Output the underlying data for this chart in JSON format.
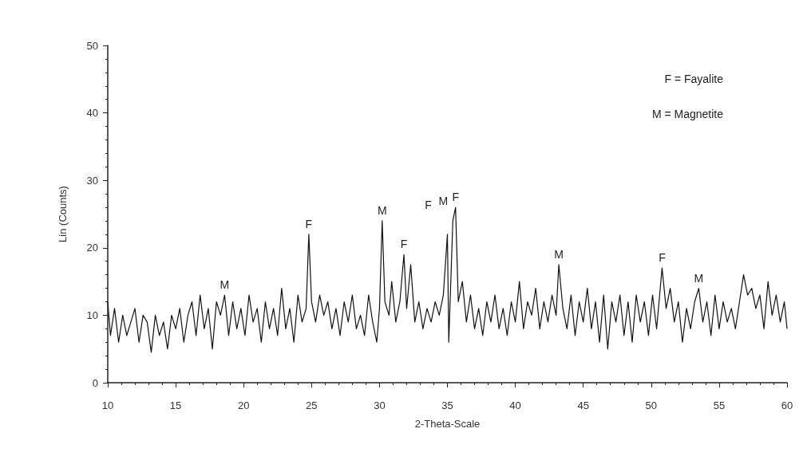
{
  "chart_data": {
    "type": "line",
    "xlabel": "2-Theta-Scale",
    "ylabel": "Lin (Counts)",
    "xlim": [
      10,
      60
    ],
    "xticks": [
      10,
      15,
      20,
      25,
      30,
      35,
      40,
      45,
      50,
      55,
      60
    ],
    "ylim": [
      0,
      50
    ],
    "yticks": [
      0,
      10,
      20,
      30,
      40,
      50
    ],
    "grid": false,
    "marker": "none",
    "line_style": "solid",
    "x": [
      10.0,
      10.2,
      10.5,
      10.8,
      11.1,
      11.4,
      11.7,
      12.0,
      12.3,
      12.6,
      12.9,
      13.2,
      13.5,
      13.8,
      14.1,
      14.4,
      14.7,
      15.0,
      15.3,
      15.6,
      15.9,
      16.2,
      16.5,
      16.8,
      17.1,
      17.4,
      17.7,
      18.0,
      18.3,
      18.6,
      18.9,
      19.2,
      19.5,
      19.8,
      20.1,
      20.4,
      20.7,
      21.0,
      21.3,
      21.6,
      21.9,
      22.2,
      22.5,
      22.8,
      23.1,
      23.4,
      23.7,
      24.0,
      24.3,
      24.6,
      24.8,
      25.0,
      25.3,
      25.6,
      25.9,
      26.2,
      26.5,
      26.8,
      27.1,
      27.4,
      27.7,
      28.0,
      28.3,
      28.6,
      28.9,
      29.2,
      29.5,
      29.8,
      30.0,
      30.2,
      30.4,
      30.7,
      30.9,
      31.2,
      31.5,
      31.8,
      32.0,
      32.3,
      32.6,
      32.9,
      33.2,
      33.5,
      33.8,
      34.1,
      34.4,
      34.7,
      35.0,
      35.1,
      35.4,
      35.6,
      35.8,
      36.1,
      36.4,
      36.7,
      37.0,
      37.3,
      37.6,
      37.9,
      38.2,
      38.5,
      38.8,
      39.1,
      39.4,
      39.7,
      40.0,
      40.3,
      40.6,
      40.9,
      41.2,
      41.5,
      41.8,
      42.1,
      42.4,
      42.7,
      43.0,
      43.2,
      43.5,
      43.8,
      44.1,
      44.4,
      44.7,
      45.0,
      45.3,
      45.6,
      45.9,
      46.2,
      46.5,
      46.8,
      47.1,
      47.4,
      47.7,
      48.0,
      48.3,
      48.6,
      48.9,
      49.2,
      49.5,
      49.8,
      50.1,
      50.4,
      50.8,
      51.1,
      51.4,
      51.7,
      52.0,
      52.3,
      52.6,
      52.9,
      53.2,
      53.5,
      53.8,
      54.1,
      54.4,
      54.7,
      55.0,
      55.3,
      55.6,
      55.9,
      56.2,
      56.5,
      56.8,
      57.1,
      57.4,
      57.7,
      58.0,
      58.3,
      58.6,
      58.9,
      59.2,
      59.5,
      59.8,
      60.0
    ],
    "series": [
      {
        "color": "#111111",
        "values": [
          12,
          7,
          11,
          6,
          10,
          7,
          9,
          11,
          6,
          10,
          9,
          4.5,
          10,
          7,
          9,
          5,
          10,
          8,
          11,
          6,
          10,
          12,
          7,
          13,
          8,
          11,
          5,
          12,
          10,
          13,
          7,
          12,
          8,
          11,
          7,
          13,
          9,
          11,
          6,
          12,
          8,
          11,
          7,
          14,
          8,
          11,
          6,
          13,
          9,
          11,
          22,
          12,
          9,
          13,
          10,
          12,
          8,
          11,
          7,
          12,
          9,
          13,
          8,
          10,
          7,
          13,
          9,
          6,
          11,
          24,
          12,
          10,
          15,
          9,
          12,
          19,
          11,
          17.5,
          9,
          12,
          8,
          11,
          9,
          12,
          10,
          13,
          22,
          6,
          24,
          26,
          12,
          15,
          9,
          13,
          8,
          11,
          7,
          12,
          9,
          13,
          8,
          11,
          7,
          12,
          9,
          15,
          8,
          12,
          10,
          14,
          8,
          12,
          9,
          13,
          10,
          17.5,
          11,
          8,
          13,
          7,
          12,
          9,
          14,
          8,
          12,
          6,
          13,
          5,
          12,
          9,
          13,
          7,
          12,
          6,
          13,
          9,
          12,
          7,
          13,
          8,
          17,
          11,
          14,
          9,
          12,
          6,
          11,
          8,
          12,
          14,
          9,
          12,
          7,
          13,
          8,
          12,
          9,
          11,
          8,
          12,
          16,
          13,
          14,
          11,
          13,
          8,
          15,
          10,
          13,
          9,
          12,
          8
        ]
      }
    ],
    "annotations": [
      "F = Fayalite",
      "M = Magnetite",
      {
        "text": "M",
        "x": 18.6,
        "y": 13
      },
      {
        "text": "F",
        "x": 24.8,
        "y": 22
      },
      {
        "text": "M",
        "x": 30.2,
        "y": 24
      },
      {
        "text": "F",
        "x": 31.8,
        "y": 19
      },
      {
        "text": "F",
        "x": 35.0,
        "y": 22
      },
      {
        "text": "M",
        "x": 35.4,
        "y": 24
      },
      {
        "text": "F",
        "x": 35.6,
        "y": 26
      },
      {
        "text": "M",
        "x": 43.2,
        "y": 17.5
      },
      {
        "text": "F",
        "x": 50.8,
        "y": 17
      },
      {
        "text": "M",
        "x": 53.5,
        "y": 14
      }
    ]
  }
}
